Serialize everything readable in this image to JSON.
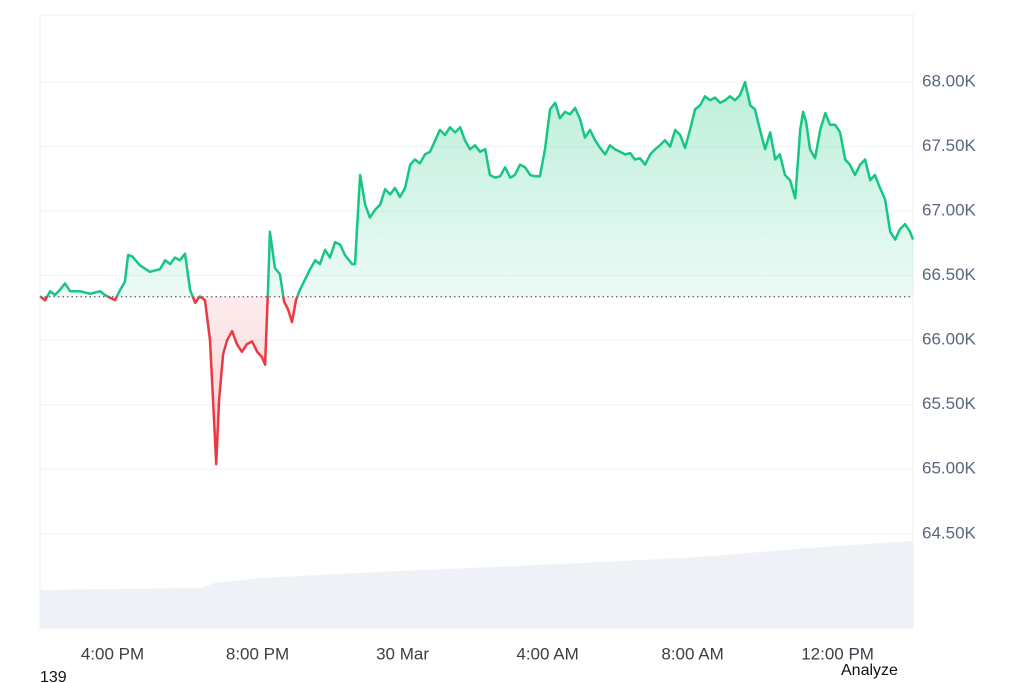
{
  "chart_data": {
    "type": "line",
    "x": [
      14.0,
      14.14,
      14.28,
      14.41,
      14.55,
      14.69,
      14.83,
      15.1,
      15.38,
      15.66,
      15.79,
      15.93,
      16.07,
      16.21,
      16.34,
      16.43,
      16.54,
      16.76,
      17.03,
      17.31,
      17.45,
      17.59,
      17.72,
      17.86,
      18.0,
      18.14,
      18.28,
      18.41,
      18.55,
      18.69,
      18.8,
      18.86,
      18.94,
      19.05,
      19.16,
      19.3,
      19.43,
      19.57,
      19.71,
      19.85,
      19.99,
      20.12,
      20.21,
      20.29,
      20.34,
      20.48,
      20.62,
      20.73,
      20.84,
      20.95,
      21.06,
      21.17,
      21.31,
      21.45,
      21.59,
      21.72,
      21.86,
      22.0,
      22.14,
      22.28,
      22.41,
      22.61,
      22.69,
      22.83,
      22.97,
      23.1,
      23.24,
      23.38,
      23.52,
      23.66,
      23.79,
      23.93,
      24.07,
      24.21,
      24.34,
      24.48,
      24.62,
      24.76,
      24.9,
      25.03,
      25.17,
      25.31,
      25.45,
      25.59,
      25.72,
      25.86,
      26.0,
      26.14,
      26.28,
      26.41,
      26.55,
      26.69,
      26.83,
      26.97,
      27.1,
      27.24,
      27.38,
      27.52,
      27.66,
      27.79,
      27.93,
      28.07,
      28.21,
      28.34,
      28.48,
      28.62,
      28.76,
      28.9,
      29.03,
      29.17,
      29.31,
      29.45,
      29.59,
      29.72,
      29.86,
      30.0,
      30.14,
      30.28,
      30.41,
      30.55,
      30.69,
      30.83,
      30.97,
      31.1,
      31.24,
      31.38,
      31.52,
      31.66,
      31.79,
      31.93,
      32.07,
      32.21,
      32.34,
      32.48,
      32.62,
      32.76,
      32.9,
      33.03,
      33.17,
      33.31,
      33.45,
      33.59,
      33.72,
      33.86,
      34.0,
      34.14,
      34.28,
      34.41,
      34.55,
      34.69,
      34.83,
      34.97,
      35.05,
      35.13,
      35.24,
      35.38,
      35.52,
      35.66,
      35.79,
      35.93,
      36.07,
      36.21,
      36.34,
      36.48,
      36.62,
      36.76,
      36.9,
      37.03,
      37.17,
      37.31,
      37.45,
      37.59,
      37.72,
      37.86,
      38.0,
      38.08
    ],
    "values": [
      66340,
      66310,
      66380,
      66350,
      66390,
      66440,
      66380,
      66380,
      66360,
      66380,
      66350,
      66330,
      66310,
      66390,
      66450,
      66660,
      66650,
      66580,
      66530,
      66550,
      66620,
      66590,
      66640,
      66620,
      66670,
      66390,
      66290,
      66340,
      66310,
      66000,
      65390,
      65040,
      65540,
      65890,
      66000,
      66070,
      65970,
      65910,
      65970,
      65990,
      65910,
      65870,
      65810,
      66390,
      66840,
      66560,
      66510,
      66300,
      66240,
      66140,
      66310,
      66390,
      66470,
      66550,
      66620,
      66590,
      66700,
      66640,
      66760,
      66740,
      66660,
      66590,
      66590,
      67280,
      67050,
      66950,
      67010,
      67050,
      67170,
      67130,
      67180,
      67110,
      67180,
      67360,
      67400,
      67370,
      67440,
      67460,
      67550,
      67630,
      67590,
      67650,
      67610,
      67650,
      67550,
      67480,
      67510,
      67460,
      67480,
      67280,
      67260,
      67270,
      67340,
      67260,
      67280,
      67360,
      67340,
      67280,
      67270,
      67270,
      67480,
      67790,
      67840,
      67720,
      67770,
      67750,
      67800,
      67710,
      67570,
      67630,
      67550,
      67490,
      67440,
      67510,
      67480,
      67460,
      67440,
      67450,
      67400,
      67410,
      67360,
      67440,
      67480,
      67510,
      67550,
      67500,
      67630,
      67590,
      67490,
      67630,
      67790,
      67820,
      67890,
      67860,
      67880,
      67840,
      67860,
      67890,
      67860,
      67900,
      68000,
      67820,
      67790,
      67630,
      67480,
      67610,
      67400,
      67440,
      67280,
      67240,
      67100,
      67630,
      67770,
      67690,
      67480,
      67410,
      67630,
      67760,
      67670,
      67670,
      67610,
      67400,
      67360,
      67280,
      67360,
      67400,
      67240,
      67280,
      67180,
      67090,
      66840,
      66780,
      66860,
      66900,
      66840,
      66780
    ],
    "baseline": 66337,
    "up_color": "#16c784",
    "down_color": "#ea3943",
    "xlim": [
      14,
      38.08
    ],
    "xticks": [
      {
        "value": 16,
        "label": "4:00 PM"
      },
      {
        "value": 20,
        "label": "8:00 PM"
      },
      {
        "value": 24,
        "label": "30 Mar"
      },
      {
        "value": 28,
        "label": "4:00 AM"
      },
      {
        "value": 32,
        "label": "8:00 AM"
      },
      {
        "value": 36,
        "label": "12:00 PM"
      }
    ],
    "ylim": [
      63770,
      68520
    ],
    "yticks": [
      {
        "value": 64500,
        "label": "64.50K"
      },
      {
        "value": 65000,
        "label": "65.00K"
      },
      {
        "value": 65500,
        "label": "65.50K"
      },
      {
        "value": 66000,
        "label": "66.00K"
      },
      {
        "value": 66500,
        "label": "66.50K"
      },
      {
        "value": 67000,
        "label": "67.00K"
      },
      {
        "value": 67500,
        "label": "67.50K"
      },
      {
        "value": 68000,
        "label": "68.00K"
      }
    ],
    "grid": true
  },
  "footer": {
    "left": "139",
    "right": "Analyze"
  }
}
